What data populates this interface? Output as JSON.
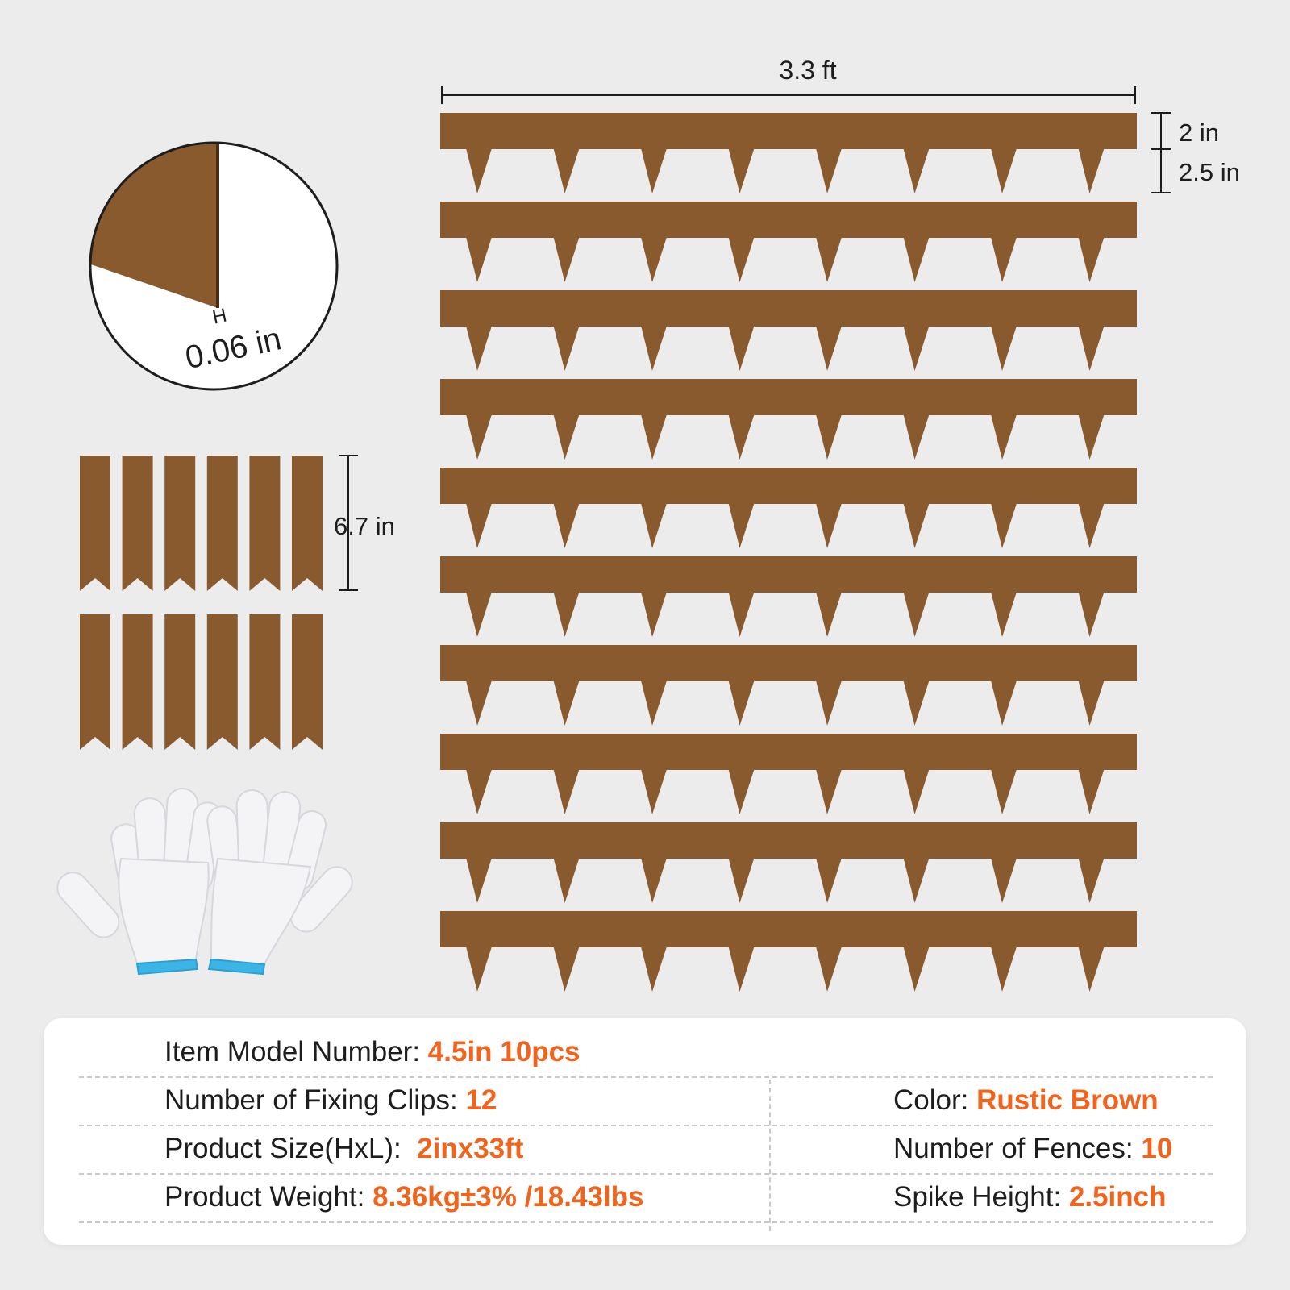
{
  "dimensions": {
    "length": "3.3 ft",
    "top_height": "2 in",
    "spike_height": "2.5 in",
    "thickness": "0.06 in",
    "thickness_marker": "H",
    "clip_length": "6.7 in"
  },
  "colors": {
    "background": "#ececec",
    "fence_brown": "#8a5a2f",
    "clip_brown": "#8a5a2f",
    "accent_orange": "#f0641e",
    "glove_white": "#f4f4f6",
    "glove_cuff": "#3cb4e6"
  },
  "fences": {
    "count": 10,
    "spikes_per_fence": 8
  },
  "clips": {
    "count": 12
  },
  "gloves": {
    "icon": "work-gloves-icon"
  },
  "specs": {
    "model_label": "Item Model Number:",
    "model_value": "4.5in 10pcs",
    "clips_label": "Number of Fixing Clips:",
    "clips_value": "12",
    "color_label": "Color:",
    "color_value": "Rustic Brown",
    "size_label": "Product Size(HxL):",
    "size_value": "2inx33ft",
    "fences_label": "Number of Fences:",
    "fences_value": "10",
    "weight_label": "Product Weight:",
    "weight_value": "8.36kg±3% /18.43lbs",
    "spike_label": "Spike Height:",
    "spike_value": "2.5inch"
  }
}
